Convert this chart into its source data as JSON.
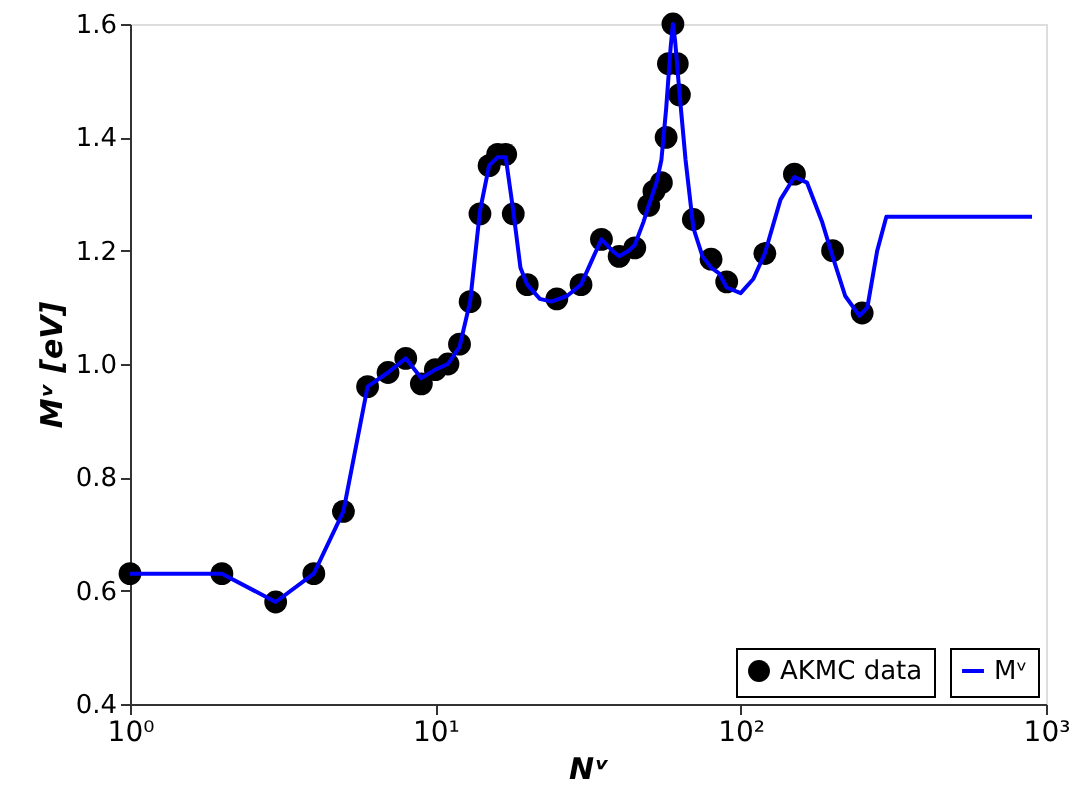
{
  "chart_data": {
    "type": "scatter",
    "xlabel": "Nᵛ",
    "ylabel": "Mᵛ  [eV]",
    "log": "x",
    "xlim": [
      1,
      1000
    ],
    "xticks": [
      {
        "value": 1,
        "label": "10⁰"
      },
      {
        "value": 10,
        "label": "10¹"
      },
      {
        "value": 100,
        "label": "10²"
      },
      {
        "value": 1000,
        "label": "10³"
      }
    ],
    "ylim": [
      0.4,
      1.6
    ],
    "yticks": [
      0.4,
      0.6,
      0.8,
      {
        "value": 1.0,
        "label": "1.0"
      },
      1.2,
      1.4,
      1.6
    ],
    "grid": false,
    "legend": "bottom right",
    "series": [
      {
        "name": "AKMC data",
        "marker": "circle",
        "color": "#000000",
        "x": [
          1,
          2,
          3,
          4,
          5,
          6,
          7,
          8,
          9,
          10,
          11,
          12,
          13,
          14,
          15,
          16,
          17,
          18,
          20,
          25,
          30,
          35,
          40,
          45,
          50,
          52,
          55,
          57,
          58,
          60,
          62,
          63,
          70,
          80,
          90,
          120,
          150,
          200,
          250
        ],
        "values": [
          0.63,
          0.63,
          0.58,
          0.63,
          0.74,
          0.96,
          0.985,
          1.01,
          0.965,
          0.99,
          1.0,
          1.035,
          1.11,
          1.265,
          1.35,
          1.37,
          1.37,
          1.265,
          1.14,
          1.115,
          1.14,
          1.22,
          1.19,
          1.205,
          1.28,
          1.305,
          1.32,
          1.4,
          1.53,
          1.6,
          1.53,
          1.475,
          1.255,
          1.185,
          1.145,
          1.195,
          1.335,
          1.2,
          1.09
        ]
      },
      {
        "name": "Mᵛ",
        "type": "line",
        "marker": "none",
        "color": "#0000ff",
        "x": [
          1,
          2,
          3,
          4,
          5,
          6,
          7,
          8,
          9,
          10,
          11,
          12,
          13,
          14,
          15,
          16,
          17,
          18,
          19,
          20,
          22,
          24,
          27,
          30,
          33,
          35,
          38,
          40,
          43,
          45,
          48,
          50,
          53,
          55,
          57,
          59,
          60,
          61,
          63,
          66,
          70,
          75,
          80,
          85,
          90,
          100,
          110,
          120,
          135,
          150,
          165,
          185,
          200,
          220,
          245,
          260,
          280,
          300,
          900
        ],
        "values": [
          0.63,
          0.63,
          0.58,
          0.63,
          0.74,
          0.96,
          0.985,
          1.01,
          0.975,
          0.99,
          1.0,
          1.03,
          1.11,
          1.27,
          1.35,
          1.365,
          1.365,
          1.27,
          1.17,
          1.14,
          1.115,
          1.11,
          1.12,
          1.14,
          1.19,
          1.22,
          1.2,
          1.19,
          1.2,
          1.21,
          1.25,
          1.28,
          1.32,
          1.36,
          1.45,
          1.56,
          1.6,
          1.57,
          1.48,
          1.36,
          1.24,
          1.19,
          1.17,
          1.16,
          1.135,
          1.125,
          1.15,
          1.195,
          1.29,
          1.33,
          1.32,
          1.25,
          1.19,
          1.12,
          1.085,
          1.1,
          1.2,
          1.26,
          1.26
        ]
      }
    ]
  }
}
